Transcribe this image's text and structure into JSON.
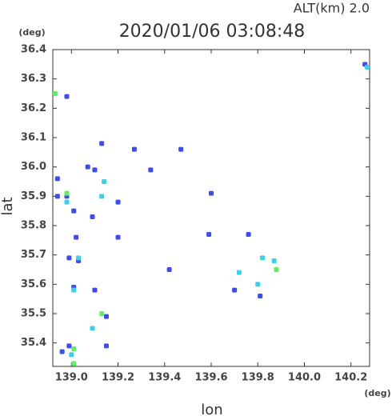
{
  "chart_data": {
    "type": "scatter",
    "title": "2020/01/06 03:08:48",
    "subtitle": "ALT(km) 2.0",
    "y_unit": "(deg)",
    "x_unit": "(deg)",
    "x_label": "lon",
    "y_label": "lat",
    "xlim": [
      138.92,
      140.28
    ],
    "ylim": [
      35.32,
      36.4
    ],
    "xticks": [
      {
        "value": 139,
        "label": "139.0"
      },
      139.2,
      139.4,
      139.6,
      139.8,
      {
        "value": 140,
        "label": "140.0"
      },
      140.2
    ],
    "yticks": [
      35.4,
      35.5,
      35.6,
      35.7,
      35.8,
      35.9,
      {
        "value": 36,
        "label": "36.0"
      },
      36.1,
      36.2,
      36.3,
      36.4
    ],
    "series": [
      {
        "name": "blue",
        "color": "#3c4cf0",
        "x": [
          138.94,
          138.94,
          138.98,
          139.01,
          139.02,
          138.99,
          139.03,
          139.01,
          139.1,
          138.99,
          138.96,
          139.13,
          139.07,
          139.1,
          139.2,
          139.2,
          139.27,
          139.59,
          139.6,
          139.42,
          139.7,
          139.76,
          139.81,
          140.26,
          139.09,
          139.15,
          139.15,
          139.47,
          139.34,
          138.98
        ],
        "y": [
          35.96,
          35.9,
          35.9,
          35.85,
          35.76,
          35.69,
          35.68,
          35.59,
          35.58,
          35.39,
          35.37,
          36.08,
          36.0,
          35.99,
          35.88,
          35.76,
          36.06,
          35.77,
          35.91,
          35.65,
          35.58,
          35.77,
          35.56,
          36.35,
          35.83,
          35.49,
          35.39,
          36.06,
          35.99,
          36.24
        ]
      },
      {
        "name": "cyan",
        "color": "#3ad0f0",
        "x": [
          138.98,
          139.14,
          139.13,
          139.09,
          139.01,
          139.82,
          139.8,
          139.72,
          139.87,
          139.03,
          139.0,
          140.27
        ],
        "y": [
          35.88,
          35.95,
          35.9,
          35.45,
          35.58,
          35.69,
          35.6,
          35.64,
          35.68,
          35.69,
          35.36,
          36.34
        ]
      },
      {
        "name": "green",
        "color": "#5ef060",
        "x": [
          138.93,
          138.98,
          139.13,
          139.01,
          139.01,
          139.88
        ],
        "y": [
          36.25,
          35.91,
          35.5,
          35.38,
          35.33,
          35.65
        ]
      }
    ]
  }
}
